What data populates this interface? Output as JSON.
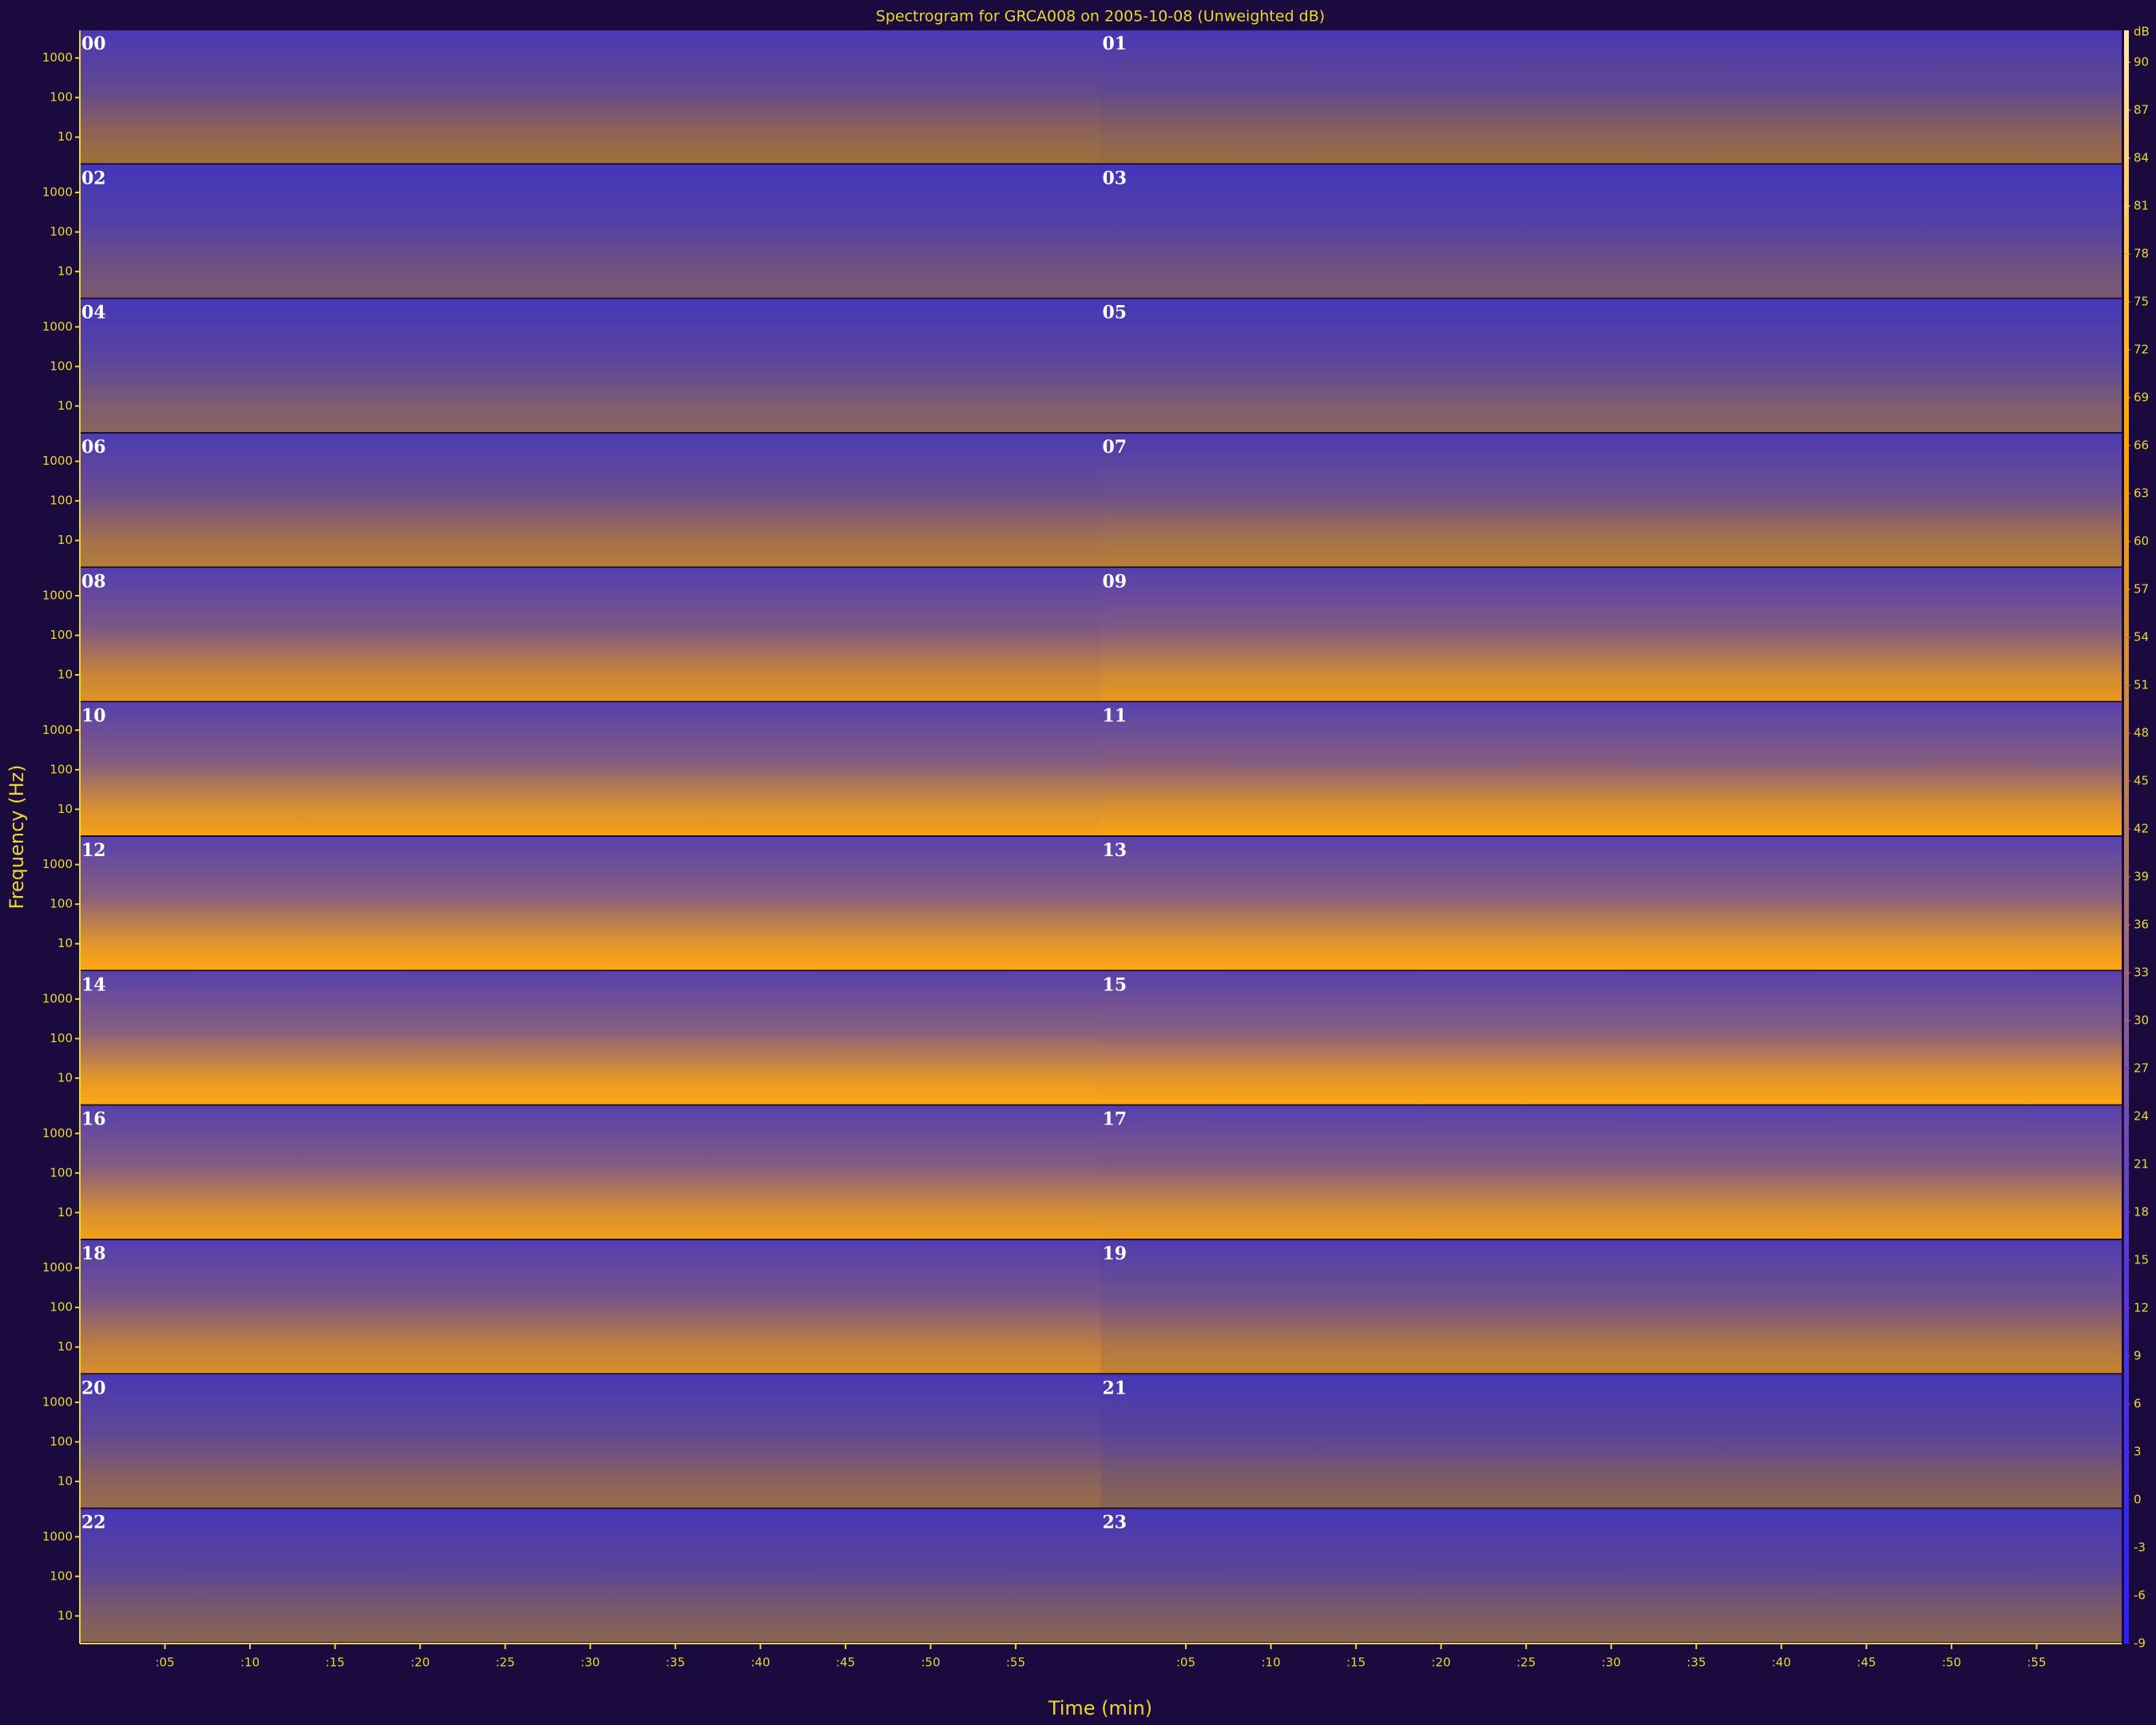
{
  "chart_data": {
    "type": "spectrogram",
    "title": "Spectrogram for GRCA008 on 2005-10-08 (Unweighted dB)",
    "xlabel": "Time (min)",
    "ylabel": "Frequency (Hz)",
    "yscale": "log",
    "xlim": [
      0,
      60
    ],
    "xticks": [
      {
        "value": 5,
        "label": ":05"
      },
      {
        "value": 10,
        "label": ":10"
      },
      {
        "value": 15,
        "label": ":15"
      },
      {
        "value": 20,
        "label": ":20"
      },
      {
        "value": 25,
        "label": ":25"
      },
      {
        "value": 30,
        "label": ":30"
      },
      {
        "value": 35,
        "label": ":35"
      },
      {
        "value": 40,
        "label": ":40"
      },
      {
        "value": 45,
        "label": ":45"
      },
      {
        "value": 50,
        "label": ":50"
      },
      {
        "value": 55,
        "label": ":55"
      }
    ],
    "ylim": [
      2,
      5000
    ],
    "yticks": [
      1000,
      100,
      10
    ],
    "background_color": "#3a2fc8",
    "panels": [
      {
        "label": "00",
        "color": "#a0703a"
      },
      {
        "label": "01",
        "color": "#9a6c40"
      },
      {
        "label": "02",
        "color": "#7a5a70"
      },
      {
        "label": "03",
        "color": "#7a5a70"
      },
      {
        "label": "04",
        "color": "#8a6560"
      },
      {
        "label": "05",
        "color": "#8a6560"
      },
      {
        "label": "06",
        "color": "#b57c38"
      },
      {
        "label": "07",
        "color": "#b87e36"
      },
      {
        "label": "08",
        "color": "#e09420"
      },
      {
        "label": "09",
        "color": "#e8991c"
      },
      {
        "label": "10",
        "color": "#f5a214"
      },
      {
        "label": "11",
        "color": "#f8a412"
      },
      {
        "label": "12",
        "color": "#ffa810"
      },
      {
        "label": "13",
        "color": "#ffa810"
      },
      {
        "label": "14",
        "color": "#ffa810"
      },
      {
        "label": "15",
        "color": "#ffa612"
      },
      {
        "label": "16",
        "color": "#f2a018"
      },
      {
        "label": "17",
        "color": "#f09e1a"
      },
      {
        "label": "18",
        "color": "#d88e28"
      },
      {
        "label": "19",
        "color": "#c4842e"
      },
      {
        "label": "20",
        "color": "#9a6c48"
      },
      {
        "label": "21",
        "color": "#8a6452"
      },
      {
        "label": "22",
        "color": "#8a6452"
      },
      {
        "label": "23",
        "color": "#8a6452"
      }
    ],
    "colorbar_label": "dB",
    "clim": [
      -9,
      92
    ],
    "colorbar_ticks": [
      90,
      87,
      84,
      81,
      78,
      75,
      72,
      69,
      66,
      63,
      60,
      57,
      54,
      51,
      48,
      45,
      42,
      39,
      36,
      33,
      30,
      27,
      24,
      21,
      18,
      15,
      12,
      9,
      6,
      3,
      0,
      -3,
      -6,
      -9
    ],
    "colormap": [
      "#2a20ff",
      "#5a3ad0",
      "#b07a60",
      "#ffa500",
      "#ffe8b0"
    ]
  }
}
